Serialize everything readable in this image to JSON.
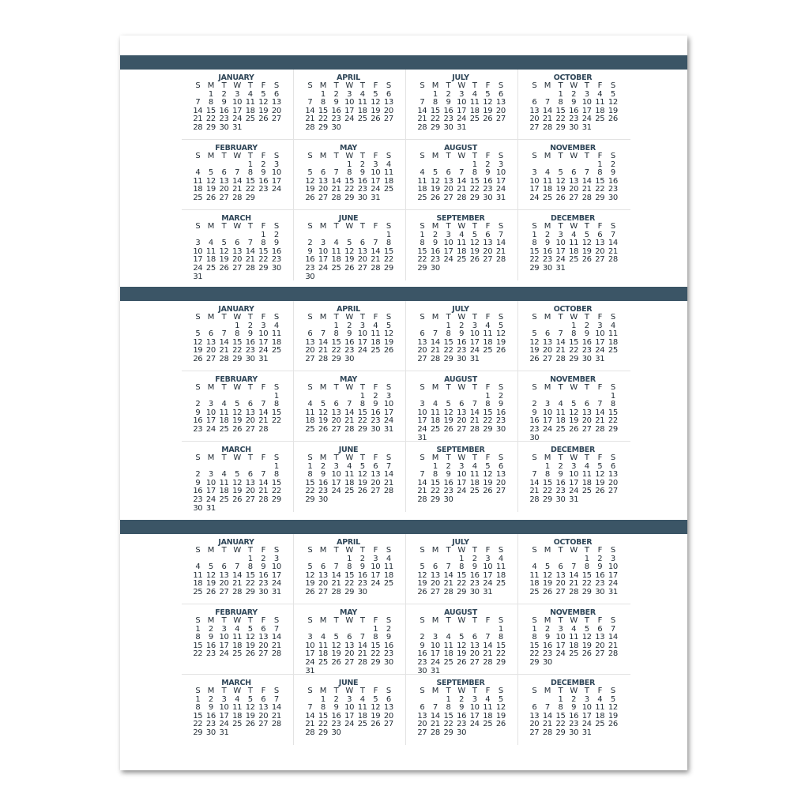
{
  "weekday_headers": [
    "S",
    "M",
    "T",
    "W",
    "T",
    "F",
    "S"
  ],
  "colors": {
    "band": "#3b5566",
    "month_name": "#2f4658",
    "text": "#1f2a33"
  },
  "years": [
    {
      "months": [
        {
          "name": "JANUARY",
          "start_weekday": 1,
          "days": 31
        },
        {
          "name": "FEBRUARY",
          "start_weekday": 4,
          "days": 29
        },
        {
          "name": "MARCH",
          "start_weekday": 5,
          "days": 31
        },
        {
          "name": "APRIL",
          "start_weekday": 1,
          "days": 30
        },
        {
          "name": "MAY",
          "start_weekday": 3,
          "days": 31
        },
        {
          "name": "JUNE",
          "start_weekday": 6,
          "days": 30
        },
        {
          "name": "JULY",
          "start_weekday": 1,
          "days": 31
        },
        {
          "name": "AUGUST",
          "start_weekday": 4,
          "days": 31
        },
        {
          "name": "SEPTEMBER",
          "start_weekday": 0,
          "days": 30
        },
        {
          "name": "OCTOBER",
          "start_weekday": 2,
          "days": 31
        },
        {
          "name": "NOVEMBER",
          "start_weekday": 5,
          "days": 30
        },
        {
          "name": "DECEMBER",
          "start_weekday": 0,
          "days": 31
        }
      ]
    },
    {
      "months": [
        {
          "name": "JANUARY",
          "start_weekday": 3,
          "days": 31
        },
        {
          "name": "FEBRUARY",
          "start_weekday": 6,
          "days": 28
        },
        {
          "name": "MARCH",
          "start_weekday": 6,
          "days": 31
        },
        {
          "name": "APRIL",
          "start_weekday": 2,
          "days": 30
        },
        {
          "name": "MAY",
          "start_weekday": 4,
          "days": 31
        },
        {
          "name": "JUNE",
          "start_weekday": 0,
          "days": 30
        },
        {
          "name": "JULY",
          "start_weekday": 2,
          "days": 31
        },
        {
          "name": "AUGUST",
          "start_weekday": 5,
          "days": 31
        },
        {
          "name": "SEPTEMBER",
          "start_weekday": 1,
          "days": 30
        },
        {
          "name": "OCTOBER",
          "start_weekday": 3,
          "days": 31
        },
        {
          "name": "NOVEMBER",
          "start_weekday": 6,
          "days": 30
        },
        {
          "name": "DECEMBER",
          "start_weekday": 1,
          "days": 31
        }
      ]
    },
    {
      "months": [
        {
          "name": "JANUARY",
          "start_weekday": 4,
          "days": 31
        },
        {
          "name": "FEBRUARY",
          "start_weekday": 0,
          "days": 28
        },
        {
          "name": "MARCH",
          "start_weekday": 0,
          "days": 31
        },
        {
          "name": "APRIL",
          "start_weekday": 3,
          "days": 30
        },
        {
          "name": "MAY",
          "start_weekday": 5,
          "days": 31
        },
        {
          "name": "JUNE",
          "start_weekday": 1,
          "days": 30
        },
        {
          "name": "JULY",
          "start_weekday": 3,
          "days": 31
        },
        {
          "name": "AUGUST",
          "start_weekday": 6,
          "days": 31
        },
        {
          "name": "SEPTEMBER",
          "start_weekday": 2,
          "days": 30
        },
        {
          "name": "OCTOBER",
          "start_weekday": 4,
          "days": 31
        },
        {
          "name": "NOVEMBER",
          "start_weekday": 0,
          "days": 30
        },
        {
          "name": "DECEMBER",
          "start_weekday": 2,
          "days": 31
        }
      ]
    }
  ]
}
